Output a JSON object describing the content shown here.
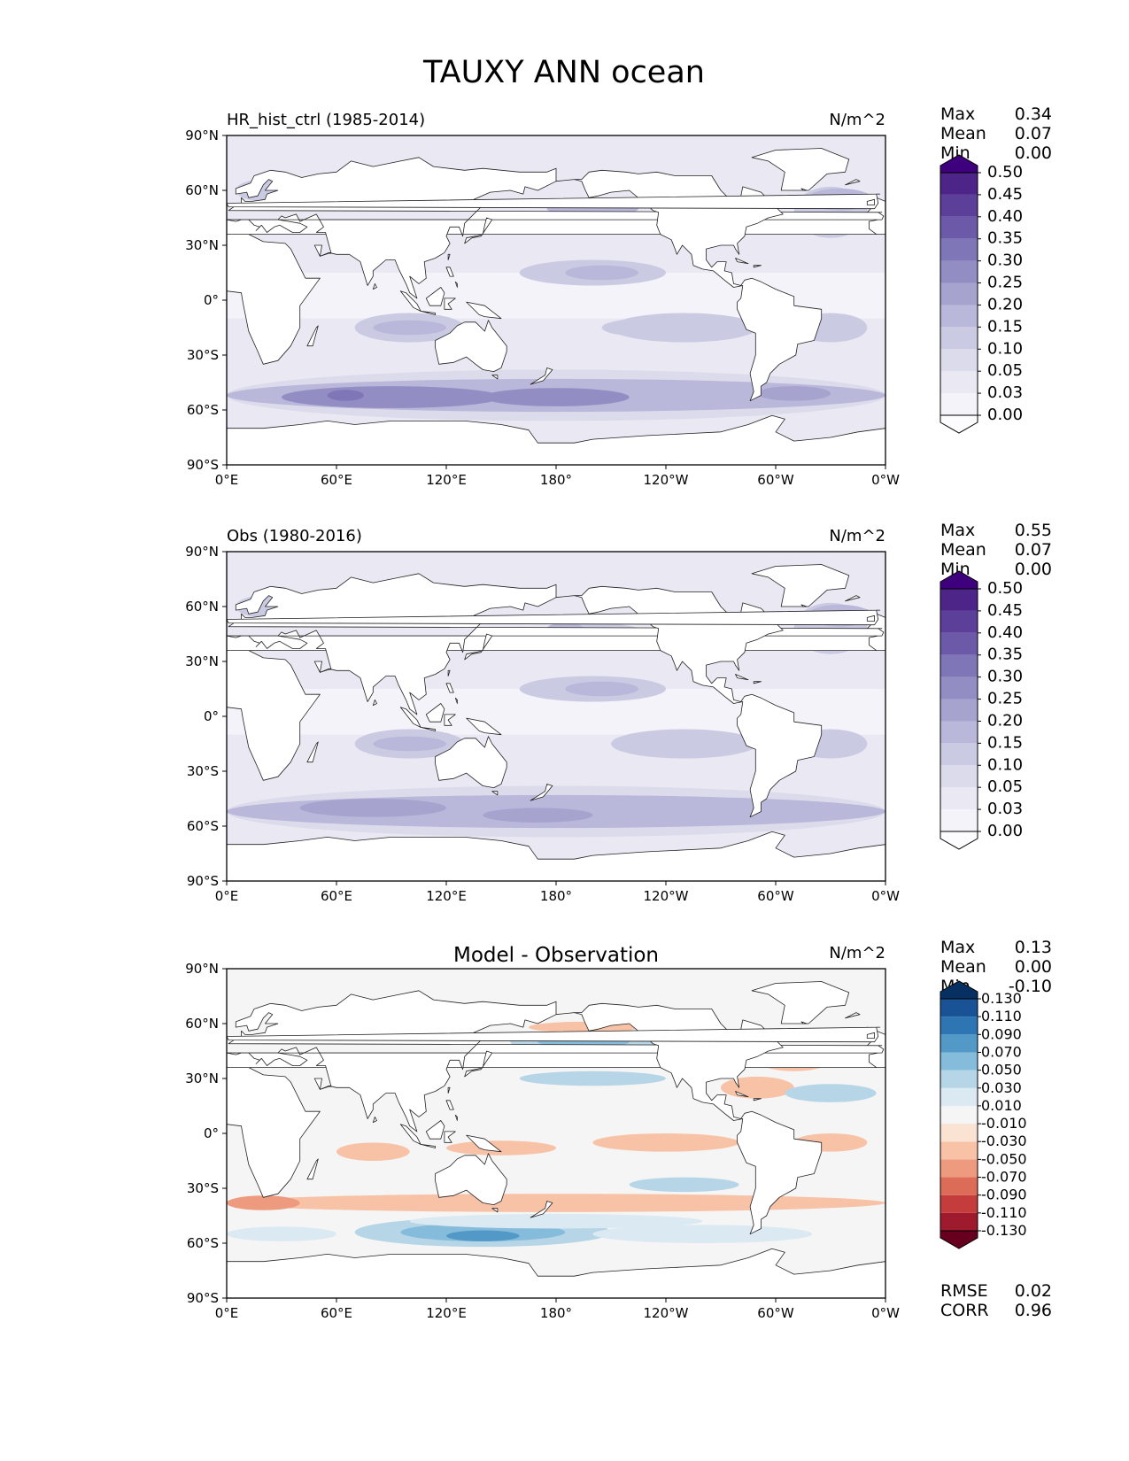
{
  "title": "TAUXY ANN ocean",
  "x_ticks": [
    "0°E",
    "60°E",
    "120°E",
    "180°",
    "120°W",
    "60°W",
    "0°W"
  ],
  "y_ticks": [
    "90°N",
    "60°N",
    "30°N",
    "0°",
    "30°S",
    "60°S",
    "90°S"
  ],
  "panels": [
    {
      "id": "model",
      "title": "HR_hist_ctrl (1985-2014)",
      "title_centered": false,
      "units": "N/m^2",
      "stats": [
        {
          "label": "Max",
          "value": "0.34"
        },
        {
          "label": "Mean",
          "value": "0.07"
        },
        {
          "label": "Min",
          "value": "0.00"
        }
      ],
      "colorbar_levels": [
        "0.00",
        "0.03",
        "0.05",
        "0.10",
        "0.15",
        "0.20",
        "0.25",
        "0.30",
        "0.35",
        "0.40",
        "0.45",
        "0.50"
      ],
      "colorbar_colors": [
        "#fcfbfd",
        "#f4f3f9",
        "#e9e8f3",
        "#dcdbec",
        "#cbcae3",
        "#b9b7da",
        "#a6a3cf",
        "#928dc3",
        "#7e76b7",
        "#6c5aa8",
        "#5c3f99",
        "#4d2588",
        "#3f007d"
      ],
      "field_color_scale": "purples"
    },
    {
      "id": "obs",
      "title": "Obs (1980-2016)",
      "title_centered": false,
      "units": "N/m^2",
      "stats": [
        {
          "label": "Max",
          "value": "0.55"
        },
        {
          "label": "Mean",
          "value": "0.07"
        },
        {
          "label": "Min",
          "value": "0.00"
        }
      ],
      "colorbar_levels": [
        "0.00",
        "0.03",
        "0.05",
        "0.10",
        "0.15",
        "0.20",
        "0.25",
        "0.30",
        "0.35",
        "0.40",
        "0.45",
        "0.50"
      ],
      "colorbar_colors": [
        "#fcfbfd",
        "#f4f3f9",
        "#e9e8f3",
        "#dcdbec",
        "#cbcae3",
        "#b9b7da",
        "#a6a3cf",
        "#928dc3",
        "#7e76b7",
        "#6c5aa8",
        "#5c3f99",
        "#4d2588",
        "#3f007d"
      ],
      "field_color_scale": "purples"
    },
    {
      "id": "diff",
      "title": "Model - Observation",
      "title_centered": true,
      "units": "N/m^2",
      "stats": [
        {
          "label": "Max",
          "value": "0.13"
        },
        {
          "label": "Mean",
          "value": "0.00"
        },
        {
          "label": "Min",
          "value": "-0.10"
        }
      ],
      "colorbar_levels": [
        "-0.130",
        "-0.110",
        "-0.090",
        "-0.070",
        "-0.050",
        "-0.030",
        "-0.010",
        "0.010",
        "0.030",
        "0.050",
        "0.070",
        "0.090",
        "0.110",
        "0.130"
      ],
      "colorbar_colors": [
        "#67001f",
        "#9e1a2d",
        "#c43c3c",
        "#dc6b58",
        "#ee9a7f",
        "#f8c2a6",
        "#fbe3d4",
        "#f5f5f5",
        "#dbe9f2",
        "#b6d6e8",
        "#86bcdb",
        "#5299c8",
        "#2e75b3",
        "#1a5395",
        "#053061"
      ],
      "field_color_scale": "red-blue diverging",
      "extra_stats": [
        {
          "label": "RMSE",
          "value": "0.02"
        },
        {
          "label": "CORR",
          "value": "0.96"
        }
      ]
    }
  ]
}
